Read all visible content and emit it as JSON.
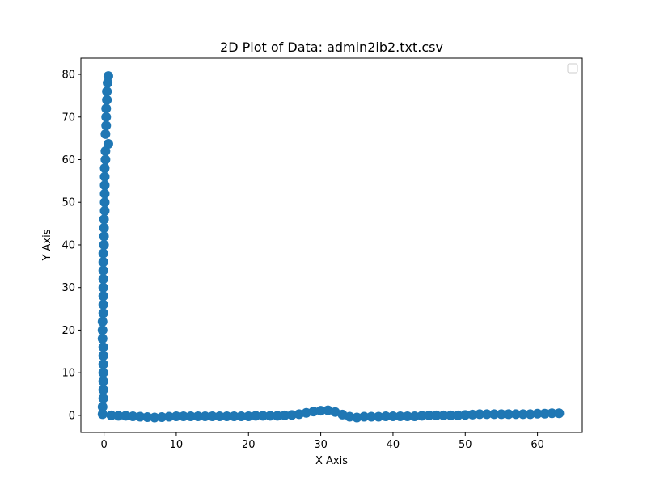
{
  "chart_data": {
    "type": "scatter",
    "title": "2D Plot of Data: admin2ib2.txt.csv",
    "xlabel": "X Axis",
    "ylabel": "Y Axis",
    "xlim": [
      -3.2,
      66.2
    ],
    "ylim": [
      -4.0,
      83.8
    ],
    "xticks": [
      0,
      10,
      20,
      30,
      40,
      50,
      60
    ],
    "yticks": [
      0,
      10,
      20,
      30,
      40,
      50,
      60,
      70,
      80
    ],
    "grid": false,
    "legend": {
      "placement": "top-right",
      "entries": []
    },
    "series": [
      {
        "color": "#1f77b4",
        "marker": "circle",
        "points": [
          [
            0.6,
            79.6
          ],
          [
            0.5,
            78.0
          ],
          [
            0.4,
            76.0
          ],
          [
            0.4,
            74.0
          ],
          [
            0.3,
            72.0
          ],
          [
            0.3,
            70.0
          ],
          [
            0.3,
            68.0
          ],
          [
            0.2,
            66.0
          ],
          [
            0.6,
            63.7
          ],
          [
            0.2,
            62.0
          ],
          [
            0.2,
            60.0
          ],
          [
            0.1,
            58.0
          ],
          [
            0.1,
            56.0
          ],
          [
            0.1,
            54.0
          ],
          [
            0.1,
            52.0
          ],
          [
            0.1,
            50.0
          ],
          [
            0.1,
            48.0
          ],
          [
            0.0,
            46.0
          ],
          [
            0.0,
            44.0
          ],
          [
            0.0,
            42.0
          ],
          [
            0.0,
            40.0
          ],
          [
            -0.1,
            38.0
          ],
          [
            -0.1,
            36.0
          ],
          [
            -0.1,
            34.0
          ],
          [
            -0.1,
            32.0
          ],
          [
            -0.1,
            30.0
          ],
          [
            -0.1,
            28.0
          ],
          [
            -0.1,
            26.0
          ],
          [
            -0.1,
            24.0
          ],
          [
            -0.2,
            22.0
          ],
          [
            -0.2,
            20.0
          ],
          [
            -0.2,
            18.0
          ],
          [
            -0.1,
            16.0
          ],
          [
            -0.1,
            14.0
          ],
          [
            -0.1,
            12.0
          ],
          [
            -0.1,
            10.0
          ],
          [
            -0.1,
            8.0
          ],
          [
            -0.1,
            6.0
          ],
          [
            -0.1,
            4.0
          ],
          [
            -0.2,
            2.0
          ],
          [
            -0.2,
            0.3
          ],
          [
            1.0,
            0.0
          ],
          [
            2.0,
            -0.1
          ],
          [
            3.0,
            -0.1
          ],
          [
            4.0,
            -0.2
          ],
          [
            5.0,
            -0.3
          ],
          [
            6.0,
            -0.4
          ],
          [
            7.0,
            -0.5
          ],
          [
            8.0,
            -0.4
          ],
          [
            9.0,
            -0.3
          ],
          [
            10.0,
            -0.2
          ],
          [
            11.0,
            -0.2
          ],
          [
            12.0,
            -0.2
          ],
          [
            13.0,
            -0.2
          ],
          [
            14.0,
            -0.2
          ],
          [
            15.0,
            -0.2
          ],
          [
            16.0,
            -0.2
          ],
          [
            17.0,
            -0.2
          ],
          [
            18.0,
            -0.2
          ],
          [
            19.0,
            -0.2
          ],
          [
            20.0,
            -0.2
          ],
          [
            21.0,
            -0.1
          ],
          [
            22.0,
            -0.1
          ],
          [
            23.0,
            -0.1
          ],
          [
            24.0,
            -0.1
          ],
          [
            25.0,
            0.0
          ],
          [
            26.0,
            0.1
          ],
          [
            27.0,
            0.3
          ],
          [
            28.0,
            0.6
          ],
          [
            29.0,
            0.9
          ],
          [
            30.0,
            1.1
          ],
          [
            31.0,
            1.2
          ],
          [
            32.0,
            0.8
          ],
          [
            33.0,
            0.2
          ],
          [
            34.0,
            -0.3
          ],
          [
            35.0,
            -0.5
          ],
          [
            36.0,
            -0.3
          ],
          [
            37.0,
            -0.3
          ],
          [
            38.0,
            -0.3
          ],
          [
            39.0,
            -0.2
          ],
          [
            40.0,
            -0.2
          ],
          [
            41.0,
            -0.2
          ],
          [
            42.0,
            -0.2
          ],
          [
            43.0,
            -0.2
          ],
          [
            44.0,
            -0.1
          ],
          [
            45.0,
            0.0
          ],
          [
            46.0,
            0.0
          ],
          [
            47.0,
            0.0
          ],
          [
            48.0,
            0.0
          ],
          [
            49.0,
            0.0
          ],
          [
            50.0,
            0.1
          ],
          [
            51.0,
            0.2
          ],
          [
            52.0,
            0.3
          ],
          [
            53.0,
            0.3
          ],
          [
            54.0,
            0.3
          ],
          [
            55.0,
            0.3
          ],
          [
            56.0,
            0.3
          ],
          [
            57.0,
            0.3
          ],
          [
            58.0,
            0.3
          ],
          [
            59.0,
            0.3
          ],
          [
            60.0,
            0.4
          ],
          [
            61.0,
            0.4
          ],
          [
            62.0,
            0.5
          ],
          [
            63.0,
            0.5
          ]
        ]
      }
    ]
  }
}
